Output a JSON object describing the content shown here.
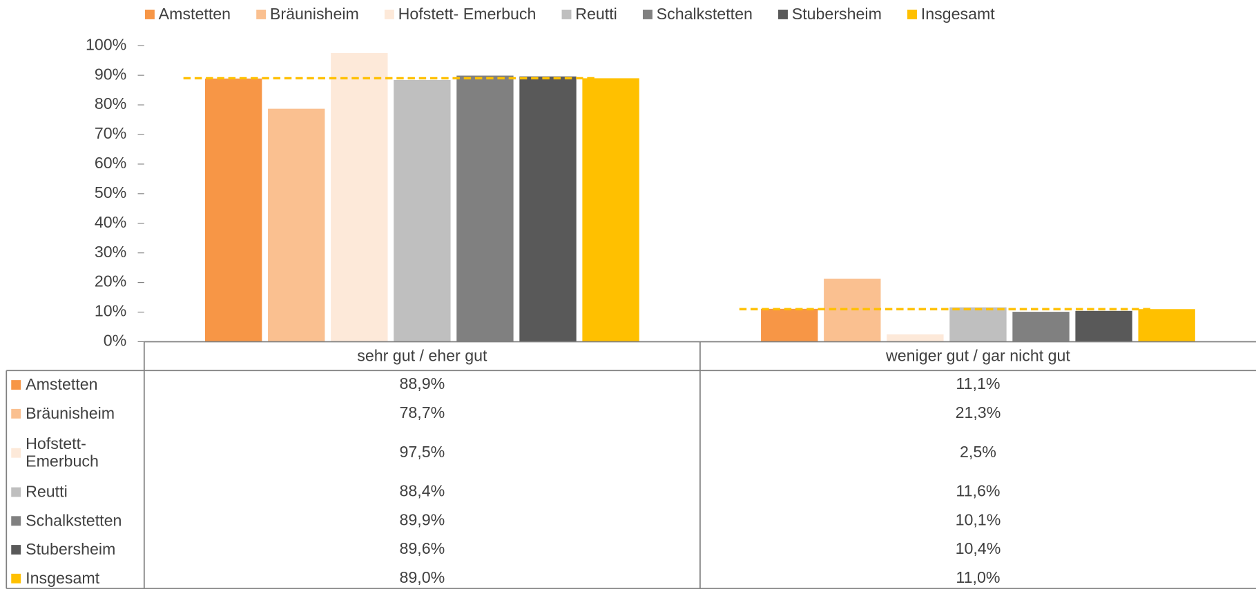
{
  "chart_data": {
    "type": "bar",
    "categories": [
      "sehr gut / eher gut",
      "weniger gut / gar nicht gut"
    ],
    "series": [
      {
        "name": "Amstetten",
        "color": "#F79646",
        "values": [
          88.9,
          11.1
        ],
        "value_labels": [
          "88,9%",
          "11,1%"
        ]
      },
      {
        "name": "Bräunisheim",
        "color": "#FAC090",
        "values": [
          78.7,
          21.3
        ],
        "value_labels": [
          "78,7%",
          "21,3%"
        ]
      },
      {
        "name": "Hofstett- Emerbuch",
        "color": "#FDE9D9",
        "values": [
          97.5,
          2.5
        ],
        "value_labels": [
          "97,5%",
          "2,5%"
        ]
      },
      {
        "name": "Reutti",
        "color": "#BFBFBF",
        "values": [
          88.4,
          11.6
        ],
        "value_labels": [
          "88,4%",
          "11,6%"
        ]
      },
      {
        "name": "Schalkstetten",
        "color": "#808080",
        "values": [
          89.9,
          10.1
        ],
        "value_labels": [
          "89,9%",
          "10,1%"
        ]
      },
      {
        "name": "Stubersheim",
        "color": "#595959",
        "values": [
          89.6,
          10.4
        ],
        "value_labels": [
          "89,6%",
          "10,4%"
        ]
      },
      {
        "name": "Insgesamt",
        "color": "#FFC000",
        "values": [
          89.0,
          11.0
        ],
        "value_labels": [
          "89,0%",
          "11,0%"
        ]
      }
    ],
    "ylim": [
      0,
      100
    ],
    "yticks": [
      {
        "value": 0,
        "label": "0%"
      },
      {
        "value": 10,
        "label": "10%"
      },
      {
        "value": 20,
        "label": "20%"
      },
      {
        "value": 30,
        "label": "30%"
      },
      {
        "value": 40,
        "label": "40%"
      },
      {
        "value": 50,
        "label": "50%"
      },
      {
        "value": 60,
        "label": "60%"
      },
      {
        "value": 70,
        "label": "70%"
      },
      {
        "value": 80,
        "label": "80%"
      },
      {
        "value": 90,
        "label": "90%"
      },
      {
        "value": 100,
        "label": "100%"
      }
    ],
    "legend": "top",
    "data_table": true,
    "reference_series": "Insgesamt"
  }
}
